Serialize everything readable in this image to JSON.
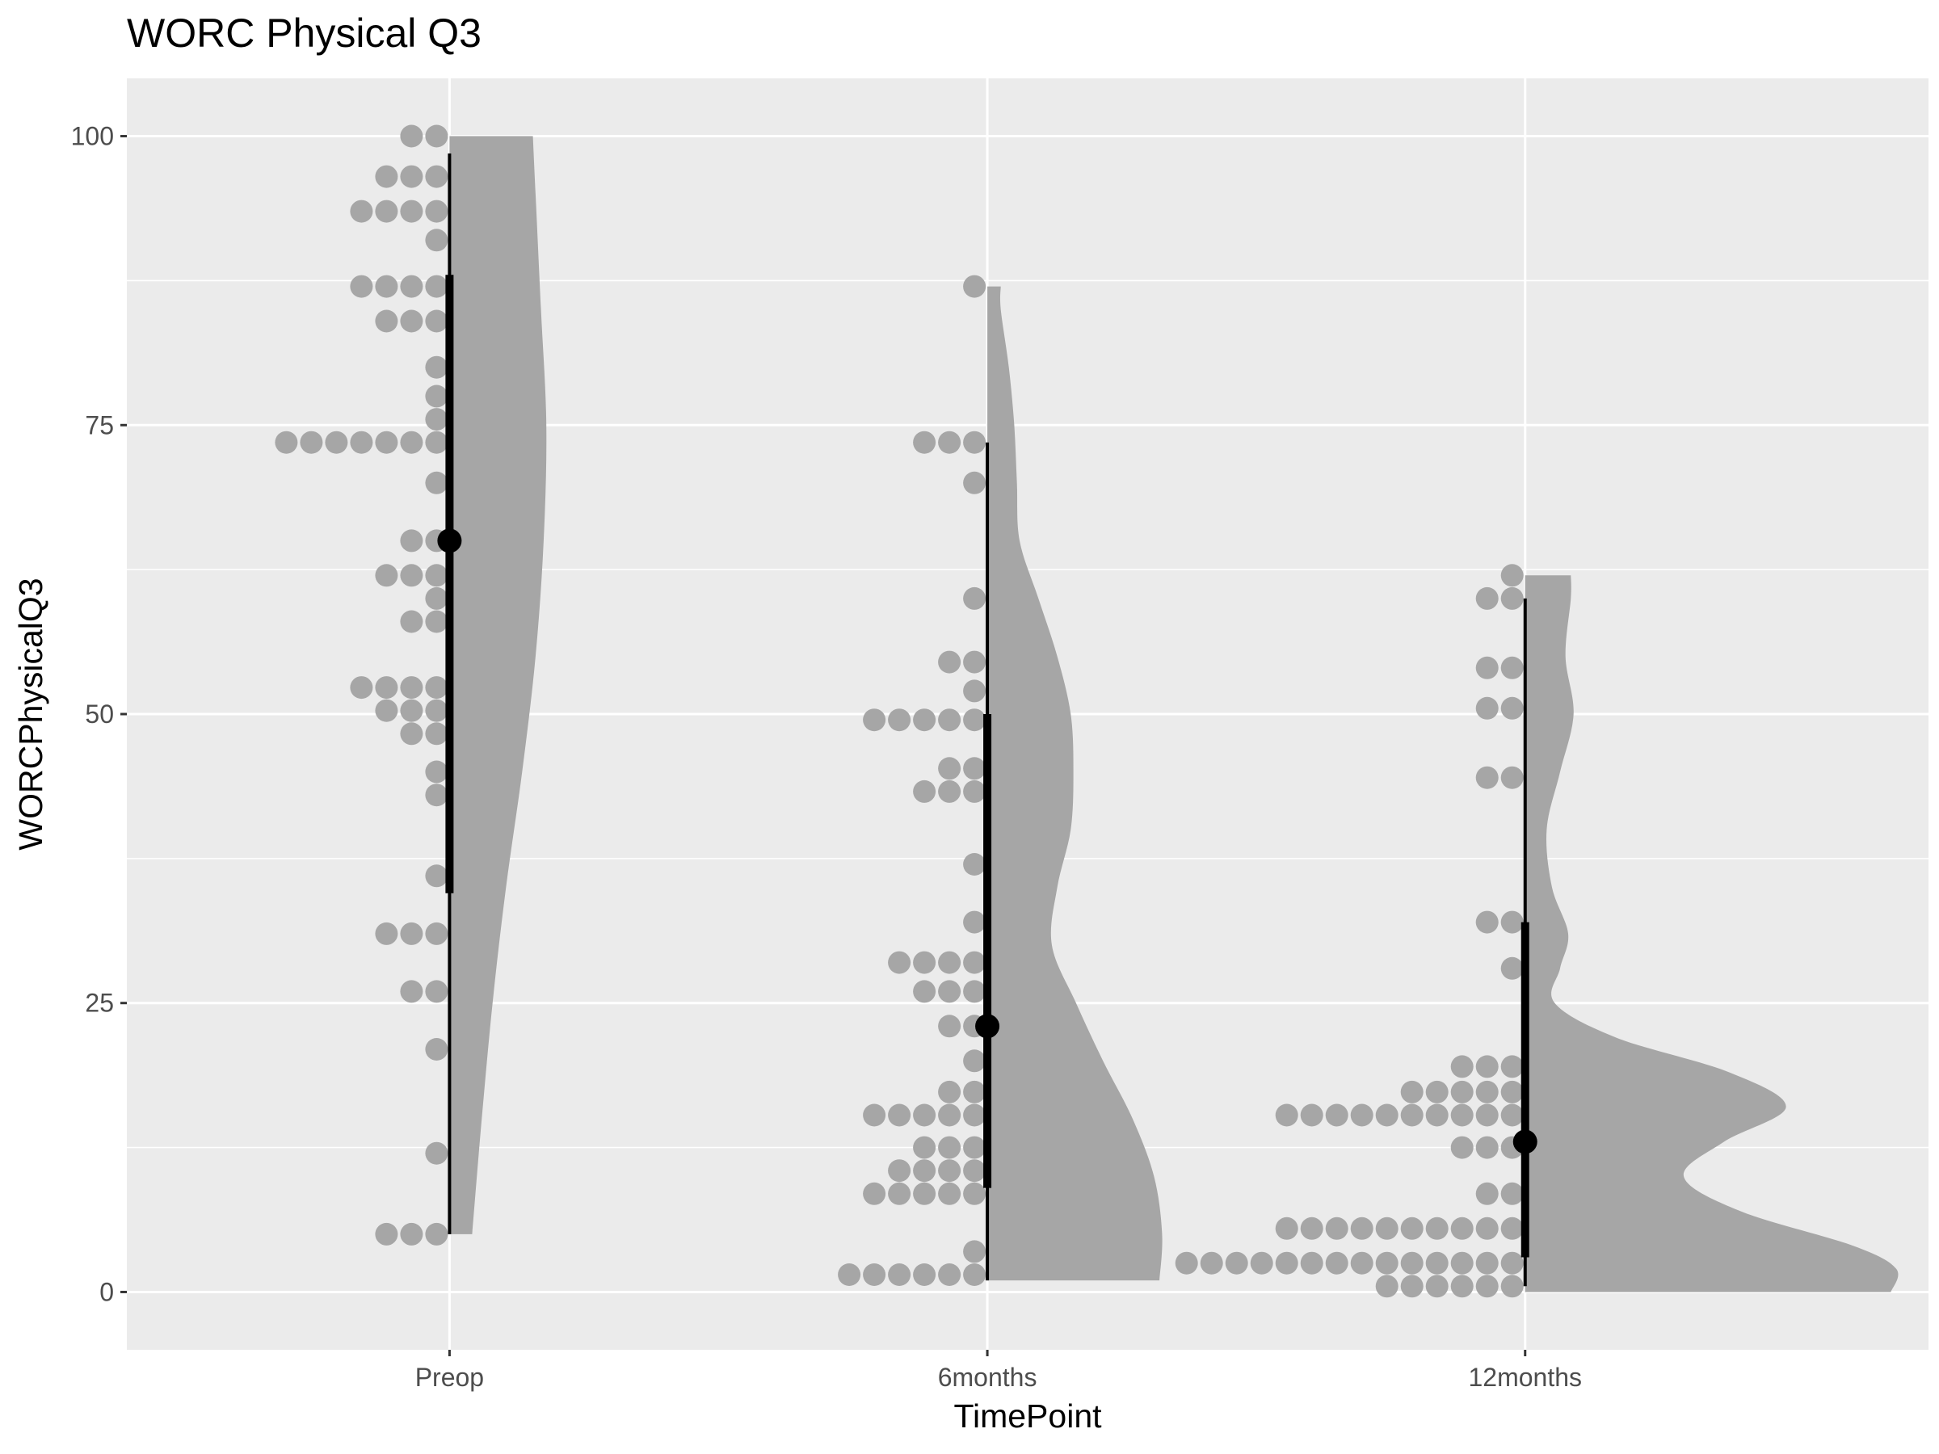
{
  "chart_data": {
    "type": "raincloud",
    "title": "WORC Physical Q3",
    "xlabel": "TimePoint",
    "ylabel": "WORCPhysicalQ3",
    "ylim": [
      -5,
      105
    ],
    "yticks": [
      0,
      25,
      50,
      75,
      100
    ],
    "categories": [
      "Preop",
      "6months",
      "12months"
    ],
    "grid": true,
    "legend": "none",
    "colors": {
      "panel": "#EBEBEB",
      "grid": "#FFFFFF",
      "points": "#A6A6A6",
      "density": "#A6A6A6",
      "summary": "#000000",
      "tick_label": "#4D4D4D"
    },
    "groups": [
      {
        "category": "Preop",
        "dots": [
          {
            "y": 100,
            "n": 2
          },
          {
            "y": 96.5,
            "n": 3
          },
          {
            "y": 93.5,
            "n": 4
          },
          {
            "y": 91,
            "n": 1
          },
          {
            "y": 87,
            "n": 4
          },
          {
            "y": 84,
            "n": 3
          },
          {
            "y": 80,
            "n": 1
          },
          {
            "y": 77.5,
            "n": 1
          },
          {
            "y": 75.5,
            "n": 1
          },
          {
            "y": 73.5,
            "n": 7
          },
          {
            "y": 70,
            "n": 1
          },
          {
            "y": 65,
            "n": 2
          },
          {
            "y": 62,
            "n": 3
          },
          {
            "y": 60,
            "n": 1
          },
          {
            "y": 58,
            "n": 2
          },
          {
            "y": 52.3,
            "n": 4
          },
          {
            "y": 50.3,
            "n": 3
          },
          {
            "y": 48.3,
            "n": 2
          },
          {
            "y": 45,
            "n": 1
          },
          {
            "y": 43,
            "n": 1
          },
          {
            "y": 36,
            "n": 1
          },
          {
            "y": 31,
            "n": 3
          },
          {
            "y": 26,
            "n": 2
          },
          {
            "y": 21,
            "n": 1
          },
          {
            "y": 12,
            "n": 1
          },
          {
            "y": 5,
            "n": 3
          }
        ],
        "density": [
          {
            "y": 5,
            "w": 0.042
          },
          {
            "y": 15,
            "w": 0.06
          },
          {
            "y": 25,
            "w": 0.08
          },
          {
            "y": 35,
            "w": 0.105
          },
          {
            "y": 45,
            "w": 0.135
          },
          {
            "y": 55,
            "w": 0.16
          },
          {
            "y": 65,
            "w": 0.175
          },
          {
            "y": 75,
            "w": 0.18
          },
          {
            "y": 85,
            "w": 0.17
          },
          {
            "y": 95,
            "w": 0.16
          },
          {
            "y": 100,
            "w": 0.155
          }
        ],
        "summary": {
          "point": 65,
          "inner": [
            34.5,
            88
          ],
          "outer": [
            5,
            98.5
          ]
        }
      },
      {
        "category": "6months",
        "dots": [
          {
            "y": 87,
            "n": 1
          },
          {
            "y": 73.5,
            "n": 3
          },
          {
            "y": 70,
            "n": 1
          },
          {
            "y": 60,
            "n": 1
          },
          {
            "y": 54.5,
            "n": 2
          },
          {
            "y": 52,
            "n": 1
          },
          {
            "y": 49.5,
            "n": 5
          },
          {
            "y": 45.3,
            "n": 2
          },
          {
            "y": 43.3,
            "n": 3
          },
          {
            "y": 37,
            "n": 1
          },
          {
            "y": 32,
            "n": 1
          },
          {
            "y": 28.5,
            "n": 4
          },
          {
            "y": 26,
            "n": 3
          },
          {
            "y": 23,
            "n": 2
          },
          {
            "y": 20,
            "n": 1
          },
          {
            "y": 17.3,
            "n": 2
          },
          {
            "y": 15.3,
            "n": 5
          },
          {
            "y": 12.5,
            "n": 3
          },
          {
            "y": 10.5,
            "n": 4
          },
          {
            "y": 8.5,
            "n": 5
          },
          {
            "y": 3.5,
            "n": 1
          },
          {
            "y": 1.5,
            "n": 6
          }
        ],
        "density": [
          {
            "y": 1,
            "w": 0.32
          },
          {
            "y": 5,
            "w": 0.325
          },
          {
            "y": 10,
            "w": 0.31
          },
          {
            "y": 15,
            "w": 0.27
          },
          {
            "y": 20,
            "w": 0.215
          },
          {
            "y": 25,
            "w": 0.165
          },
          {
            "y": 30,
            "w": 0.12
          },
          {
            "y": 35,
            "w": 0.13
          },
          {
            "y": 40,
            "w": 0.155
          },
          {
            "y": 45,
            "w": 0.16
          },
          {
            "y": 50,
            "w": 0.155
          },
          {
            "y": 55,
            "w": 0.13
          },
          {
            "y": 60,
            "w": 0.095
          },
          {
            "y": 65,
            "w": 0.06
          },
          {
            "y": 70,
            "w": 0.055
          },
          {
            "y": 75,
            "w": 0.05
          },
          {
            "y": 80,
            "w": 0.04
          },
          {
            "y": 85,
            "w": 0.025
          },
          {
            "y": 87,
            "w": 0.025
          }
        ],
        "summary": {
          "point": 23,
          "inner": [
            9,
            50
          ],
          "outer": [
            1,
            73.5
          ]
        }
      },
      {
        "category": "12months",
        "dots": [
          {
            "y": 62,
            "n": 1
          },
          {
            "y": 60,
            "n": 2
          },
          {
            "y": 54,
            "n": 2
          },
          {
            "y": 50.5,
            "n": 2
          },
          {
            "y": 44.5,
            "n": 2
          },
          {
            "y": 32,
            "n": 2
          },
          {
            "y": 28,
            "n": 1
          },
          {
            "y": 19.5,
            "n": 3
          },
          {
            "y": 17.3,
            "n": 5
          },
          {
            "y": 15.3,
            "n": 10
          },
          {
            "y": 12.5,
            "n": 3
          },
          {
            "y": 8.5,
            "n": 2
          },
          {
            "y": 5.5,
            "n": 10
          },
          {
            "y": 2.5,
            "n": 14
          },
          {
            "y": 0.5,
            "n": 6
          }
        ],
        "density": [
          {
            "y": 0,
            "w": 0.68
          },
          {
            "y": 2,
            "w": 0.69
          },
          {
            "y": 4,
            "w": 0.61
          },
          {
            "y": 7,
            "w": 0.4
          },
          {
            "y": 10,
            "w": 0.295
          },
          {
            "y": 13,
            "w": 0.37
          },
          {
            "y": 16,
            "w": 0.485
          },
          {
            "y": 19,
            "w": 0.38
          },
          {
            "y": 22,
            "w": 0.17
          },
          {
            "y": 25,
            "w": 0.055
          },
          {
            "y": 28,
            "w": 0.065
          },
          {
            "y": 31,
            "w": 0.08
          },
          {
            "y": 35,
            "w": 0.05
          },
          {
            "y": 40,
            "w": 0.04
          },
          {
            "y": 45,
            "w": 0.065
          },
          {
            "y": 50,
            "w": 0.09
          },
          {
            "y": 55,
            "w": 0.075
          },
          {
            "y": 60,
            "w": 0.085
          },
          {
            "y": 62,
            "w": 0.085
          }
        ],
        "summary": {
          "point": 13,
          "inner": [
            3,
            32
          ],
          "outer": [
            0.5,
            60
          ]
        }
      }
    ]
  }
}
